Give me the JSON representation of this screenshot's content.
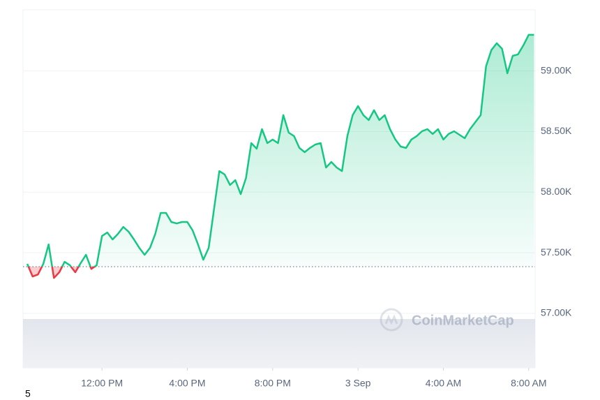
{
  "chart_data": {
    "type": "line",
    "watermark": "CoinMarketCap",
    "footer": "5",
    "color": "#16c784",
    "down_color": "#ea3943",
    "baseline": 57385,
    "grid": true,
    "xlim": [
      8.3,
      32.3
    ],
    "xticks": [
      {
        "value": 12,
        "label": "12:00 PM"
      },
      {
        "value": 16,
        "label": "4:00 PM"
      },
      {
        "value": 20,
        "label": "8:00 PM"
      },
      {
        "value": 24,
        "label": "3 Sep"
      },
      {
        "value": 28,
        "label": "4:00 AM"
      },
      {
        "value": 32,
        "label": "8:00 AM"
      }
    ],
    "ylim": [
      56550,
      59505
    ],
    "yticks": [
      {
        "value": 57000,
        "label": "57.00K"
      },
      {
        "value": 57500,
        "label": "57.50K"
      },
      {
        "value": 58000,
        "label": "58.00K"
      },
      {
        "value": 58500,
        "label": "58.50K"
      },
      {
        "value": 59000,
        "label": "59.00K"
      }
    ],
    "x": [
      8.5,
      8.75,
      9,
      9.25,
      9.5,
      9.75,
      10,
      10.25,
      10.5,
      10.75,
      11,
      11.25,
      11.5,
      11.75,
      12,
      12.25,
      12.5,
      12.75,
      13,
      13.25,
      13.5,
      13.75,
      14,
      14.25,
      14.5,
      14.75,
      15,
      15.25,
      15.5,
      15.75,
      16,
      16.25,
      16.5,
      16.75,
      17,
      17.25,
      17.5,
      17.75,
      18,
      18.25,
      18.5,
      18.75,
      19,
      19.25,
      19.5,
      19.75,
      20,
      20.25,
      20.5,
      20.75,
      21,
      21.25,
      21.5,
      21.75,
      22,
      22.25,
      22.5,
      22.75,
      23,
      23.25,
      23.5,
      23.75,
      24,
      24.25,
      24.5,
      24.75,
      25,
      25.25,
      25.5,
      25.75,
      26,
      26.25,
      26.5,
      26.75,
      27,
      27.25,
      27.5,
      27.75,
      28,
      28.25,
      28.5,
      28.75,
      29,
      29.25,
      29.5,
      29.75,
      30,
      30.25,
      30.5,
      30.75,
      31,
      31.25,
      31.5,
      31.75,
      32,
      32.25
    ],
    "values": [
      57408,
      57304,
      57321,
      57408,
      57569,
      57292,
      57339,
      57425,
      57396,
      57339,
      57414,
      57483,
      57367,
      57396,
      57638,
      57667,
      57610,
      57656,
      57713,
      57673,
      57610,
      57540,
      57483,
      57540,
      57656,
      57829,
      57829,
      57754,
      57742,
      57754,
      57754,
      57684,
      57569,
      57442,
      57540,
      57857,
      58174,
      58146,
      58059,
      58099,
      57984,
      58117,
      58405,
      58359,
      58520,
      58405,
      58434,
      58405,
      58636,
      58491,
      58463,
      58365,
      58330,
      58365,
      58393,
      58405,
      58203,
      58249,
      58203,
      58174,
      58463,
      58636,
      58710,
      58636,
      58595,
      58676,
      58595,
      58636,
      58520,
      58434,
      58376,
      58365,
      58434,
      58463,
      58503,
      58520,
      58480,
      58520,
      58434,
      58480,
      58503,
      58474,
      58445,
      58520,
      58578,
      58636,
      59039,
      59172,
      59229,
      59183,
      58981,
      59125,
      59137,
      59212,
      59298,
      59298
    ]
  }
}
